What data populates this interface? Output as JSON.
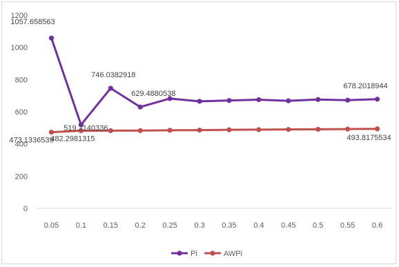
{
  "chart_data": {
    "type": "line",
    "title": "",
    "xlabel": "",
    "ylabel": "",
    "x": [
      "0.05",
      "0.1",
      "0.15",
      "0.2",
      "0.25",
      "0.3",
      "0.35",
      "0.4",
      "0.45",
      "0.5",
      "0.55",
      "0.6"
    ],
    "ylim": [
      0,
      1200
    ],
    "yticks": [
      "0",
      "200",
      "400",
      "600",
      "800",
      "1000",
      "1200"
    ],
    "grid": "none",
    "legend_position": "bottom",
    "series": [
      {
        "name": "Pi",
        "color": "#7030a0",
        "values": [
          1057.658563,
          519.2140336,
          746.0382918,
          629.4880538,
          682,
          665,
          670,
          675,
          668,
          676,
          672,
          678.2018944
        ]
      },
      {
        "name": "AWPi",
        "color": "#c0504d",
        "values": [
          473.1336539,
          482.2981315,
          482.5,
          483,
          485,
          486,
          488,
          489,
          490,
          491,
          492.5,
          493.8175534
        ]
      }
    ],
    "annotations": [
      {
        "text": "1057.658563",
        "series": 0,
        "index": 0
      },
      {
        "text": "519.2140336",
        "series": 0,
        "index": 1
      },
      {
        "text": "746.0382918",
        "series": 0,
        "index": 2
      },
      {
        "text": "629.4880538",
        "series": 0,
        "index": 3
      },
      {
        "text": "678.2018944",
        "series": 0,
        "index": 11
      },
      {
        "text": "473.1336539",
        "series": 1,
        "index": 0
      },
      {
        "text": "482.2981315",
        "series": 1,
        "index": 1
      },
      {
        "text": "493.8175534",
        "series": 1,
        "index": 11
      }
    ]
  }
}
